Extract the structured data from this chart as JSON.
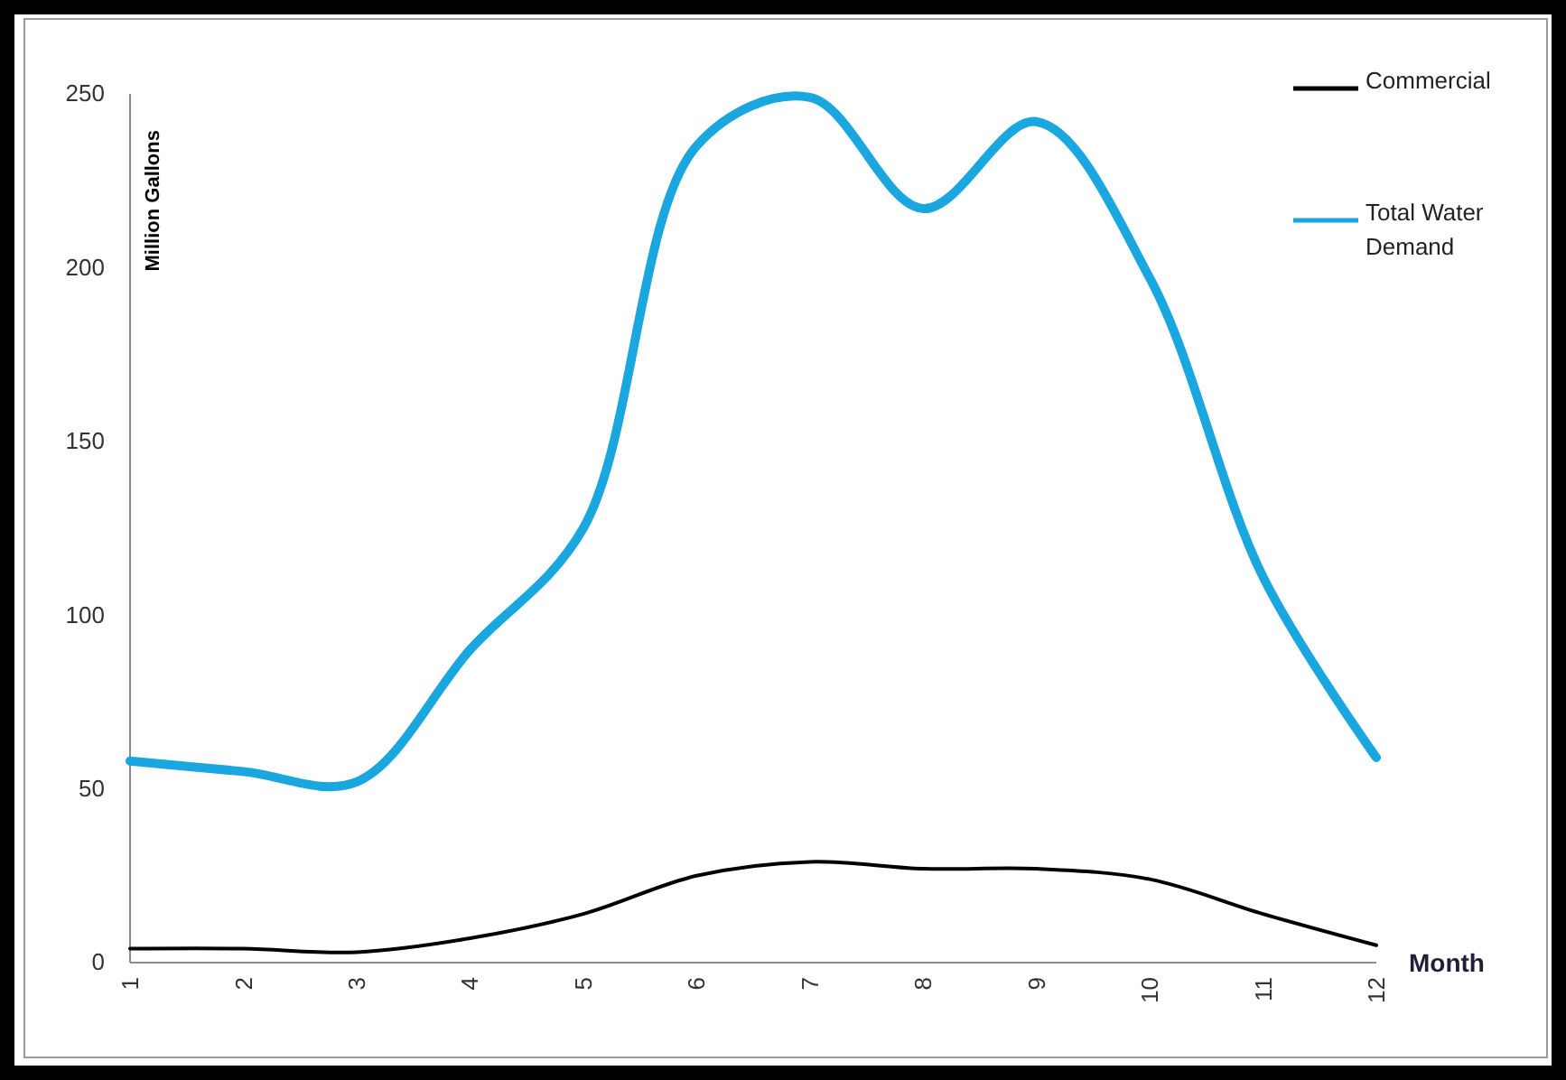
{
  "chart_data": {
    "type": "line",
    "xlabel": "Month",
    "ylabel": "Million Gallons",
    "categories": [
      "1",
      "2",
      "3",
      "4",
      "5",
      "6",
      "7",
      "8",
      "9",
      "10",
      "11",
      "12"
    ],
    "series": [
      {
        "name": "Commercial",
        "color": "#000000",
        "values": [
          4,
          4,
          3,
          7,
          14,
          25,
          29,
          27,
          27,
          24,
          14,
          5
        ]
      },
      {
        "name": "Total Water Demand",
        "color": "#1aa6de",
        "values": [
          58,
          55,
          52,
          90,
          125,
          235,
          249,
          217,
          242,
          197,
          111,
          59
        ]
      }
    ],
    "ylim": [
      0,
      250
    ],
    "yticks": [
      0,
      50,
      100,
      150,
      200,
      250
    ],
    "legend": "top right"
  }
}
